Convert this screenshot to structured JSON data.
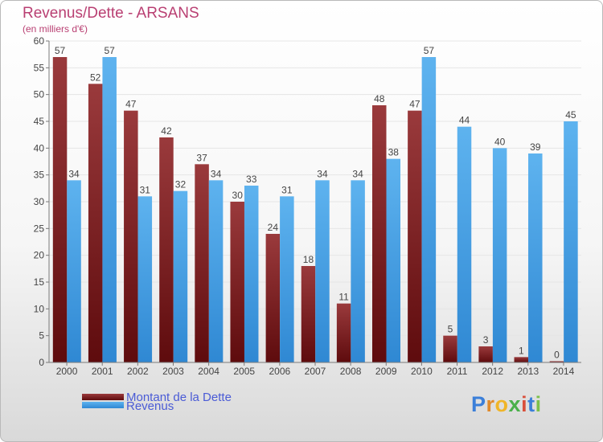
{
  "title": "Revenus/Dette - ARSANS",
  "subtitle": "(en milliers d'€)",
  "colors": {
    "dette_dark": "#5e0b0d",
    "dette_light": "#9a3a3c",
    "revenus_dark": "#2f88d3",
    "revenus_light": "#5eb3ef",
    "axis": "#7a7a7a",
    "grid": "#e6e6e6",
    "title": "#b93f72",
    "legend_text": "#4a5bd6"
  },
  "logo": {
    "letters": [
      "P",
      "r",
      "o",
      "x",
      "i",
      "t",
      "i"
    ],
    "colors": [
      "#3b7fd9",
      "#e08a2b",
      "#f0b528",
      "#4ab04a",
      "#d94f3b",
      "#3b7fd9",
      "#7cc04a"
    ]
  },
  "chart_data": {
    "type": "bar",
    "title": "Revenus/Dette - ARSANS",
    "subtitle": "(en milliers d'€)",
    "categories": [
      "2000",
      "2001",
      "2002",
      "2003",
      "2004",
      "2005",
      "2006",
      "2007",
      "2008",
      "2009",
      "2010",
      "2011",
      "2012",
      "2013",
      "2014"
    ],
    "series": [
      {
        "name": "Montant de la Dette",
        "values": [
          57,
          52,
          47,
          42,
          37,
          30,
          24,
          18,
          11,
          48,
          47,
          5,
          3,
          1,
          0
        ]
      },
      {
        "name": "Revenus",
        "values": [
          34,
          57,
          31,
          32,
          34,
          33,
          31,
          34,
          34,
          38,
          57,
          44,
          40,
          39,
          45
        ]
      }
    ],
    "ylim": [
      0,
      60
    ],
    "yticks": [
      0,
      5,
      10,
      15,
      20,
      25,
      30,
      35,
      40,
      45,
      50,
      55,
      60
    ],
    "grid": true,
    "legend_position": "bottom-left"
  }
}
